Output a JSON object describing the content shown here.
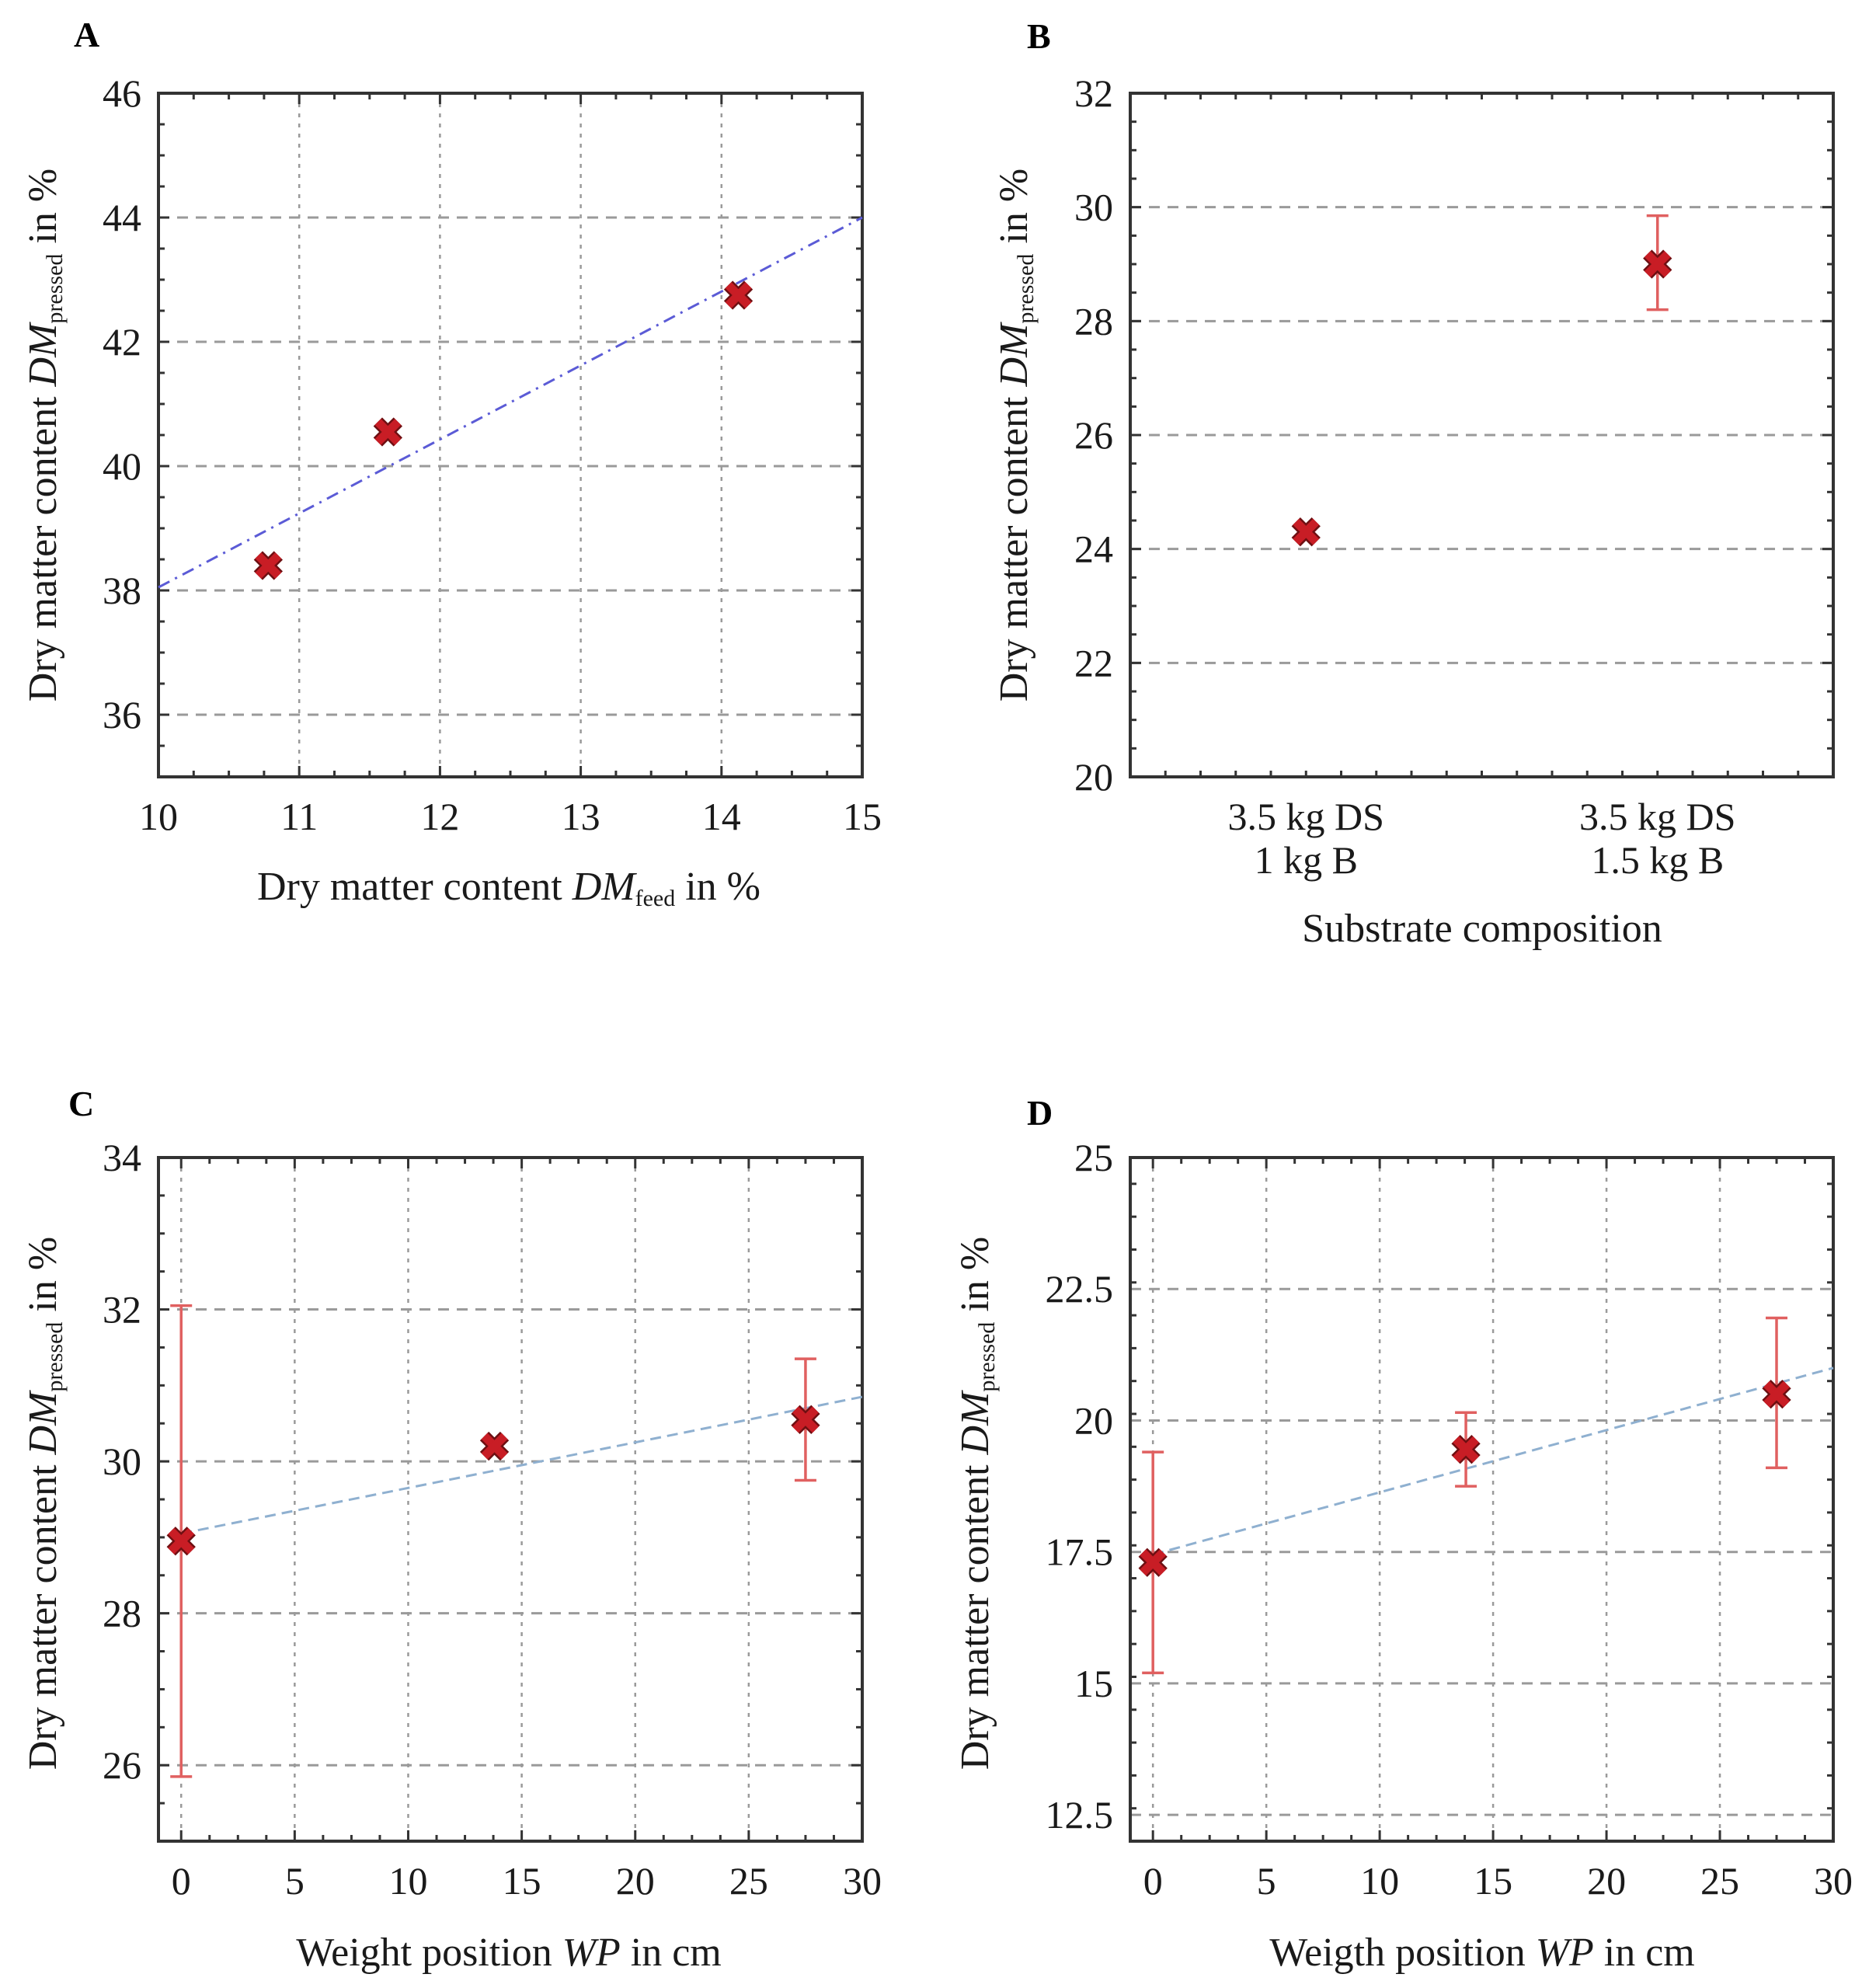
{
  "chart_data": [
    {
      "panel": "A",
      "type": "scatter",
      "xlabel_parts": {
        "pre": "Dry matter content ",
        "var": "DM",
        "sub": "feed",
        "post": " in %"
      },
      "ylabel_parts": {
        "pre": "Dry matter content ",
        "var": "DM",
        "sub": "pressed",
        "post": " in %"
      },
      "xlim": [
        10,
        15
      ],
      "ylim": [
        35,
        46
      ],
      "xticks": [
        10,
        11,
        12,
        13,
        14,
        15
      ],
      "yticks": [
        36,
        38,
        40,
        42,
        44,
        46
      ],
      "points": [
        {
          "x": 10.78,
          "y": 38.4
        },
        {
          "x": 11.63,
          "y": 40.55
        },
        {
          "x": 14.12,
          "y": 42.75
        }
      ],
      "fit": {
        "style": "dash-dot",
        "color": "#5b5bd6",
        "x": [
          10,
          15
        ],
        "y": [
          38.05,
          44.0
        ]
      }
    },
    {
      "panel": "B",
      "type": "scatter",
      "xlabel": "Substrate composition",
      "ylabel_parts": {
        "pre": "Dry matter content ",
        "var": "DM",
        "sub": "pressed",
        "post": " in %"
      },
      "ylim": [
        20,
        32
      ],
      "yticks": [
        20,
        22,
        24,
        26,
        28,
        30,
        32
      ],
      "categories": [
        {
          "line1": "3.5 kg DS",
          "line2": "1 kg B"
        },
        {
          "line1": "3.5 kg DS",
          "line2": "1.5 kg B"
        }
      ],
      "points": [
        {
          "y": 24.3,
          "err_low": 24.3,
          "err_high": 24.3
        },
        {
          "y": 29.0,
          "err_low": 28.2,
          "err_high": 29.85
        }
      ]
    },
    {
      "panel": "C",
      "type": "scatter",
      "xlabel_parts": {
        "pre": "Weight position ",
        "var": "WP",
        "post": " in cm"
      },
      "ylabel_parts": {
        "pre": "Dry matter content ",
        "var": "DM",
        "sub": "pressed",
        "post": " in %"
      },
      "xlim": [
        -1,
        30
      ],
      "ylim": [
        25,
        34
      ],
      "xticks": [
        0,
        5,
        10,
        15,
        20,
        25,
        30
      ],
      "yticks": [
        26,
        28,
        30,
        32,
        34
      ],
      "points": [
        {
          "x": 0,
          "y": 28.95,
          "err_low": 25.85,
          "err_high": 32.05
        },
        {
          "x": 13.8,
          "y": 30.2,
          "err_low": 30.2,
          "err_high": 30.2
        },
        {
          "x": 27.5,
          "y": 30.55,
          "err_low": 29.75,
          "err_high": 31.35
        }
      ],
      "fit": {
        "style": "dashed",
        "color": "#8fb0d0",
        "x": [
          0,
          30
        ],
        "y": [
          29.05,
          30.85
        ]
      }
    },
    {
      "panel": "D",
      "type": "scatter",
      "xlabel_parts": {
        "pre": "Weigth position ",
        "var": "WP",
        "post": " in cm"
      },
      "ylabel_parts": {
        "pre": "Dry matter content ",
        "var": "DM",
        "sub": "pressed",
        "post": " in %"
      },
      "xlim": [
        -1,
        30
      ],
      "ylim": [
        12,
        25
      ],
      "xticks": [
        0,
        5,
        10,
        15,
        20,
        25,
        30
      ],
      "yticks": [
        12.5,
        15,
        17.5,
        20,
        22.5,
        25
      ],
      "points": [
        {
          "x": 0,
          "y": 17.3,
          "err_low": 15.2,
          "err_high": 19.4
        },
        {
          "x": 13.8,
          "y": 19.45,
          "err_low": 18.75,
          "err_high": 20.15
        },
        {
          "x": 27.5,
          "y": 20.5,
          "err_low": 19.1,
          "err_high": 21.95
        }
      ],
      "fit": {
        "style": "dashed",
        "color": "#8fb0d0",
        "x": [
          0,
          30
        ],
        "y": [
          17.45,
          21.0
        ]
      }
    }
  ]
}
